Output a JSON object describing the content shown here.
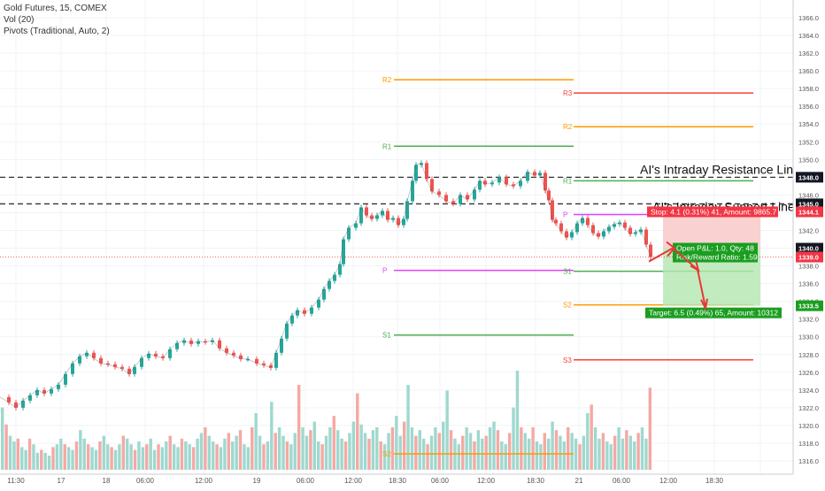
{
  "legend": {
    "symbol": "Gold Futures, 15, COMEX",
    "volume": "Vol (20)",
    "pivots": "Pivots (Traditional, Auto, 2)"
  },
  "chart_data": {
    "type": "candlestick",
    "ylim": [
      1315,
      1367
    ],
    "y_ticks": [
      1316,
      1318,
      1320,
      1322,
      1324,
      1326,
      1328,
      1330,
      1332,
      1334,
      1336,
      1338,
      1340,
      1342,
      1344,
      1346,
      1348,
      1350,
      1352,
      1354,
      1356,
      1358,
      1360,
      1362,
      1364,
      1366
    ],
    "x_ticks": [
      "11:30",
      "17",
      "18",
      "06:00",
      "12:00",
      "19",
      "06:00",
      "12:00",
      "18:30",
      "06:00",
      "12:00",
      "18:30",
      "21",
      "06:00",
      "12:00",
      "18:30"
    ],
    "price_badges": [
      {
        "label": "1348.0",
        "value": 1348.0,
        "style": "dark"
      },
      {
        "label": "1345.0",
        "value": 1345.0,
        "style": "dark"
      },
      {
        "label": "1344.1",
        "value": 1344.1,
        "style": "red"
      },
      {
        "label": "1340.0",
        "value": 1340.0,
        "style": "dark"
      },
      {
        "label": "1339.0",
        "value": 1339.0,
        "style": "red"
      },
      {
        "label": "1333.5",
        "value": 1333.5,
        "style": "green"
      }
    ],
    "dashed_levels": [
      {
        "value": 1348.0,
        "label": "AI's Intraday Resistance Line"
      },
      {
        "value": 1345.0,
        "label": "AI's Intraday Support Line"
      }
    ],
    "last_price": 1339.0,
    "pivots_prev": [
      {
        "label": "R2",
        "value": 1359.0,
        "color": "#ff9800"
      },
      {
        "label": "R1",
        "value": 1351.5,
        "color": "#4caf50"
      },
      {
        "label": "P",
        "value": 1337.5,
        "color": "#e040fb"
      },
      {
        "label": "S1",
        "value": 1330.2,
        "color": "#4caf50"
      },
      {
        "label": "S2",
        "value": 1316.8,
        "color": "#ff9800"
      }
    ],
    "pivots_curr": [
      {
        "label": "R3",
        "value": 1357.5,
        "color": "#f44336"
      },
      {
        "label": "R2",
        "value": 1353.7,
        "color": "#ff9800"
      },
      {
        "label": "R1",
        "value": 1347.6,
        "color": "#4caf50"
      },
      {
        "label": "P",
        "value": 1343.8,
        "color": "#e040fb"
      },
      {
        "label": "S1",
        "value": 1337.4,
        "color": "#4caf50"
      },
      {
        "label": "S2",
        "value": 1333.6,
        "color": "#ff9800"
      },
      {
        "label": "S3",
        "value": 1327.4,
        "color": "#f44336"
      }
    ],
    "trade": {
      "entry": 1340.0,
      "stop": 1344.1,
      "target": 1333.5,
      "stop_label": "Stop: 4.1 (0.31%) 41, Amount: 9865.7",
      "pnl_label": "Open P&L: 1.0, Qty: 48",
      "rr_label": "Risk/Reward Ratio: 1.59",
      "target_label": "Target: 6.5 (0.49%) 65, Amount: 10312"
    },
    "price_path": [
      [
        0,
        1323.2
      ],
      [
        10,
        1322.6
      ],
      [
        18,
        1322.0
      ],
      [
        26,
        1322.8
      ],
      [
        34,
        1323.4
      ],
      [
        42,
        1324.0
      ],
      [
        50,
        1323.6
      ],
      [
        58,
        1324.1
      ],
      [
        66,
        1324.6
      ],
      [
        74,
        1325.8
      ],
      [
        82,
        1327.0
      ],
      [
        90,
        1327.8
      ],
      [
        98,
        1328.2
      ],
      [
        106,
        1327.6
      ],
      [
        114,
        1327.0
      ],
      [
        122,
        1326.9
      ],
      [
        130,
        1326.6
      ],
      [
        138,
        1326.4
      ],
      [
        146,
        1325.8
      ],
      [
        152,
        1326.6
      ],
      [
        160,
        1327.6
      ],
      [
        168,
        1328.1
      ],
      [
        176,
        1327.8
      ],
      [
        184,
        1327.6
      ],
      [
        192,
        1328.6
      ],
      [
        200,
        1329.3
      ],
      [
        208,
        1329.6
      ],
      [
        216,
        1329.2
      ],
      [
        224,
        1329.5
      ],
      [
        232,
        1329.4
      ],
      [
        240,
        1329.6
      ],
      [
        248,
        1328.7
      ],
      [
        256,
        1328.2
      ],
      [
        264,
        1327.9
      ],
      [
        272,
        1327.5
      ],
      [
        280,
        1327.5
      ],
      [
        290,
        1327.0
      ],
      [
        298,
        1326.8
      ],
      [
        306,
        1326.5
      ],
      [
        312,
        1328.2
      ],
      [
        318,
        1329.8
      ],
      [
        324,
        1331.5
      ],
      [
        330,
        1332.4
      ],
      [
        336,
        1333.0
      ],
      [
        344,
        1332.6
      ],
      [
        352,
        1333.3
      ],
      [
        360,
        1334.2
      ],
      [
        366,
        1335.4
      ],
      [
        372,
        1336.3
      ],
      [
        378,
        1337.0
      ],
      [
        384,
        1338.2
      ],
      [
        388,
        1341.0
      ],
      [
        394,
        1342.3
      ],
      [
        402,
        1342.8
      ],
      [
        408,
        1344.6
      ],
      [
        414,
        1343.7
      ],
      [
        420,
        1343.3
      ],
      [
        426,
        1343.7
      ],
      [
        432,
        1344.2
      ],
      [
        438,
        1343.2
      ],
      [
        444,
        1343.4
      ],
      [
        450,
        1342.6
      ],
      [
        456,
        1343.3
      ],
      [
        460,
        1345.3
      ],
      [
        466,
        1347.6
      ],
      [
        470,
        1349.4
      ],
      [
        476,
        1349.6
      ],
      [
        482,
        1347.8
      ],
      [
        488,
        1346.4
      ],
      [
        496,
        1346.0
      ],
      [
        504,
        1345.3
      ],
      [
        512,
        1345.0
      ],
      [
        520,
        1346.0
      ],
      [
        528,
        1345.5
      ],
      [
        536,
        1346.6
      ],
      [
        542,
        1347.6
      ],
      [
        548,
        1347.2
      ],
      [
        556,
        1347.4
      ],
      [
        564,
        1348.0
      ],
      [
        572,
        1347.2
      ],
      [
        580,
        1347.0
      ],
      [
        588,
        1347.6
      ],
      [
        596,
        1348.6
      ],
      [
        604,
        1348.2
      ],
      [
        610,
        1348.5
      ],
      [
        616,
        1346.5
      ],
      [
        620,
        1345.4
      ],
      [
        624,
        1343.2
      ],
      [
        628,
        1342.8
      ],
      [
        634,
        1341.9
      ],
      [
        640,
        1341.2
      ],
      [
        646,
        1341.8
      ],
      [
        652,
        1342.8
      ],
      [
        658,
        1343.4
      ],
      [
        664,
        1342.6
      ],
      [
        670,
        1341.7
      ],
      [
        676,
        1341.3
      ],
      [
        682,
        1341.9
      ],
      [
        688,
        1342.4
      ],
      [
        694,
        1342.7
      ],
      [
        700,
        1342.9
      ],
      [
        706,
        1342.3
      ],
      [
        712,
        1341.6
      ],
      [
        718,
        1341.8
      ],
      [
        724,
        1342.1
      ],
      [
        730,
        1340.4
      ],
      [
        735,
        1339.0
      ]
    ],
    "volume_bars": [
      44,
      32,
      24,
      20,
      22,
      16,
      14,
      22,
      18,
      12,
      14,
      12,
      10,
      16,
      18,
      22,
      18,
      16,
      14,
      20,
      28,
      22,
      18,
      16,
      14,
      20,
      24,
      18,
      16,
      14,
      18,
      24,
      22,
      18,
      14,
      20,
      16,
      18,
      22,
      14,
      18,
      16,
      20,
      24,
      18,
      16,
      22,
      20,
      18,
      16,
      22,
      26,
      30,
      24,
      20,
      18,
      16,
      22,
      26,
      20,
      24,
      28,
      18,
      16,
      30,
      40,
      24,
      18,
      20,
      48,
      26,
      30,
      24,
      20,
      18,
      26,
      60,
      30,
      24,
      28,
      34,
      20,
      18,
      24,
      30,
      38,
      28,
      22,
      20,
      26,
      34,
      54,
      32,
      26,
      22,
      28,
      30,
      20,
      18,
      26,
      30,
      38,
      24,
      34,
      60,
      30,
      24,
      28,
      22,
      18,
      24,
      30,
      26,
      34,
      56,
      28,
      22,
      18,
      24,
      30,
      26,
      20,
      28,
      22,
      24,
      30,
      34,
      28,
      20,
      18,
      26,
      44,
      70,
      30,
      26,
      22,
      30,
      20,
      18,
      26,
      22,
      34,
      28,
      24,
      20,
      30,
      26,
      22,
      18,
      24,
      40,
      46,
      30,
      22,
      26,
      20,
      18,
      24,
      30,
      22,
      28,
      24,
      20,
      26,
      30,
      22,
      58
    ]
  }
}
